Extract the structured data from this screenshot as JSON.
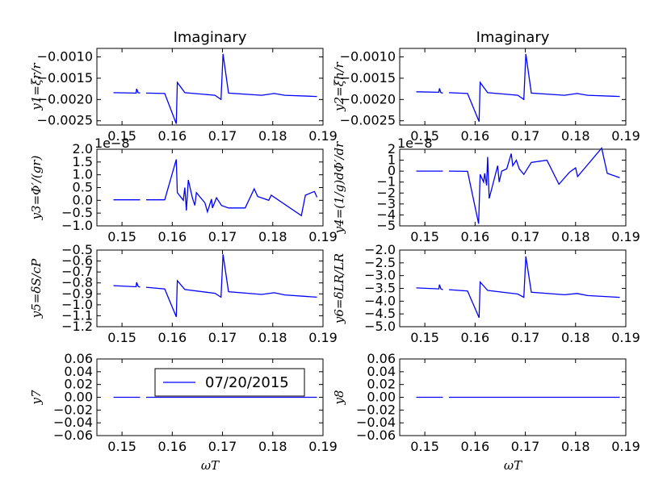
{
  "chart_data": [
    {
      "type": "line",
      "title": "Imaginary",
      "ylabel": "y1=ξr/r",
      "xlabel": "",
      "xlim": [
        0.145,
        0.19
      ],
      "ylim": [
        -0.0026,
        -0.0008
      ],
      "xticks": [
        0.15,
        0.16,
        0.17,
        0.18,
        0.19
      ],
      "yticks": [
        -0.0025,
        -0.002,
        -0.0015,
        -0.001
      ],
      "ytick_labels": [
        "−0.0025",
        "−0.0020",
        "−0.0015",
        "−0.0010"
      ],
      "series": [
        {
          "color": "#0000ff",
          "segments": [
            [
              [
                0.1483,
                -0.00184
              ],
              [
                0.1528,
                -0.00185
              ],
              [
                0.1529,
                -0.00175
              ],
              [
                0.1532,
                -0.00184
              ],
              [
                0.1536,
                -0.00185
              ]
            ],
            [
              [
                0.1548,
                -0.00185
              ],
              [
                0.1585,
                -0.00186
              ],
              [
                0.1608,
                -0.00257
              ],
              [
                0.161,
                -0.0016
              ],
              [
                0.1625,
                -0.00184
              ],
              [
                0.1685,
                -0.0019
              ],
              [
                0.1697,
                -0.002
              ],
              [
                0.1701,
                -0.00093
              ],
              [
                0.1712,
                -0.00185
              ],
              [
                0.1778,
                -0.0019
              ],
              [
                0.1803,
                -0.00186
              ],
              [
                0.1824,
                -0.0019
              ],
              [
                0.1888,
                -0.00193
              ]
            ]
          ]
        }
      ]
    },
    {
      "type": "line",
      "title": "Imaginary",
      "ylabel": "y2=ξh/r",
      "xlabel": "",
      "xlim": [
        0.145,
        0.19
      ],
      "ylim": [
        -0.0026,
        -0.0008
      ],
      "xticks": [
        0.15,
        0.16,
        0.17,
        0.18,
        0.19
      ],
      "yticks": [
        -0.0025,
        -0.002,
        -0.0015,
        -0.001
      ],
      "ytick_labels": [
        "−0.0025",
        "−0.0020",
        "−0.0015",
        "−0.0010"
      ],
      "series": [
        {
          "color": "#0000ff",
          "segments": [
            [
              [
                0.1483,
                -0.00182
              ],
              [
                0.1528,
                -0.00183
              ],
              [
                0.1529,
                -0.00174
              ],
              [
                0.1532,
                -0.00184
              ],
              [
                0.1536,
                -0.00185
              ]
            ],
            [
              [
                0.1548,
                -0.00184
              ],
              [
                0.1585,
                -0.00186
              ],
              [
                0.1608,
                -0.00252
              ],
              [
                0.161,
                -0.0016
              ],
              [
                0.1625,
                -0.00184
              ],
              [
                0.1685,
                -0.0019
              ],
              [
                0.1697,
                -0.002
              ],
              [
                0.1701,
                -0.00093
              ],
              [
                0.1712,
                -0.00185
              ],
              [
                0.1778,
                -0.0019
              ],
              [
                0.1803,
                -0.00186
              ],
              [
                0.1824,
                -0.0019
              ],
              [
                0.1888,
                -0.00193
              ]
            ]
          ]
        }
      ]
    },
    {
      "type": "line",
      "title": "",
      "ylabel": "y3=Φ′/(gr)",
      "offset": "1e−8",
      "xlabel": "",
      "xlim": [
        0.145,
        0.19
      ],
      "ylim": [
        -1.0,
        2.0
      ],
      "xticks": [
        0.15,
        0.16,
        0.17,
        0.18,
        0.19
      ],
      "yticks": [
        -1.0,
        -0.5,
        0.0,
        0.5,
        1.0,
        1.5,
        2.0
      ],
      "ytick_labels": [
        "−1.0",
        "−0.5",
        "0.0",
        "0.5",
        "1.0",
        "1.5",
        "2.0"
      ],
      "series": [
        {
          "color": "#0000ff",
          "segments": [
            [
              [
                0.1483,
                0.02
              ],
              [
                0.1536,
                0.02
              ]
            ],
            [
              [
                0.1548,
                0.02
              ],
              [
                0.1585,
                0.02
              ],
              [
                0.1608,
                1.6
              ],
              [
                0.161,
                0.3
              ],
              [
                0.1622,
                0.0
              ],
              [
                0.1625,
                0.5
              ],
              [
                0.1628,
                -0.4
              ],
              [
                0.1632,
                0.8
              ],
              [
                0.164,
                0.1
              ],
              [
                0.1645,
                -0.2
              ],
              [
                0.1648,
                0.3
              ],
              [
                0.1665,
                -0.1
              ],
              [
                0.167,
                -0.45
              ],
              [
                0.1678,
                0.05
              ],
              [
                0.168,
                -0.3
              ],
              [
                0.1688,
                0.1
              ],
              [
                0.1698,
                -0.2
              ],
              [
                0.1712,
                -0.3
              ],
              [
                0.1745,
                -0.3
              ],
              [
                0.1763,
                0.45
              ],
              [
                0.177,
                0.15
              ],
              [
                0.1792,
                0.0
              ],
              [
                0.1797,
                0.2
              ],
              [
                0.1857,
                -0.6
              ],
              [
                0.1865,
                0.2
              ],
              [
                0.1883,
                0.35
              ],
              [
                0.1888,
                0.12
              ]
            ]
          ]
        }
      ]
    },
    {
      "type": "line",
      "title": "",
      "ylabel": "y4=(1/g)dΦ′/dr",
      "offset": "1e−8",
      "xlabel": "",
      "xlim": [
        0.145,
        0.19
      ],
      "ylim": [
        -5,
        2
      ],
      "xticks": [
        0.15,
        0.16,
        0.17,
        0.18,
        0.19
      ],
      "yticks": [
        -5,
        -4,
        -3,
        -2,
        -1,
        0,
        1,
        2
      ],
      "ytick_labels": [
        "−5",
        "−4",
        "−3",
        "−2",
        "−1",
        "0",
        "1",
        "2"
      ],
      "series": [
        {
          "color": "#0000ff",
          "segments": [
            [
              [
                0.1483,
                0.0
              ],
              [
                0.1536,
                0.0
              ]
            ],
            [
              [
                0.1548,
                0.0
              ],
              [
                0.1585,
                -0.02
              ],
              [
                0.1607,
                -4.8
              ],
              [
                0.161,
                -0.3
              ],
              [
                0.1617,
                -1.0
              ],
              [
                0.1619,
                -0.2
              ],
              [
                0.1623,
                -1.3
              ],
              [
                0.1625,
                1.3
              ],
              [
                0.1628,
                -2.5
              ],
              [
                0.1645,
                0.5
              ],
              [
                0.1648,
                -1.0
              ],
              [
                0.1653,
                0.0
              ],
              [
                0.1663,
                0.2
              ],
              [
                0.1672,
                1.6
              ],
              [
                0.1675,
                0.5
              ],
              [
                0.1682,
                1.0
              ],
              [
                0.1688,
                0.2
              ],
              [
                0.1697,
                -0.3
              ],
              [
                0.1712,
                0.8
              ],
              [
                0.1743,
                1.0
              ],
              [
                0.1767,
                -1.2
              ],
              [
                0.1788,
                -0.1
              ],
              [
                0.18,
                0.3
              ],
              [
                0.1804,
                -0.5
              ],
              [
                0.1852,
                2.1
              ],
              [
                0.1863,
                -0.2
              ],
              [
                0.1888,
                -0.6
              ]
            ]
          ]
        }
      ]
    },
    {
      "type": "line",
      "title": "",
      "ylabel": "y5=δS/cP",
      "xlabel": "",
      "xlim": [
        0.145,
        0.19
      ],
      "ylim": [
        -1.2,
        -0.5
      ],
      "xticks": [
        0.15,
        0.16,
        0.17,
        0.18,
        0.19
      ],
      "yticks": [
        -1.2,
        -1.1,
        -1.0,
        -0.9,
        -0.8,
        -0.7,
        -0.6,
        -0.5
      ],
      "ytick_labels": [
        "−1.2",
        "−1.1",
        "−1.0",
        "−0.9",
        "−0.8",
        "−0.7",
        "−0.6",
        "−0.5"
      ],
      "series": [
        {
          "color": "#0000ff",
          "segments": [
            [
              [
                0.1483,
                -0.825
              ],
              [
                0.1528,
                -0.835
              ],
              [
                0.1529,
                -0.795
              ],
              [
                0.1532,
                -0.83
              ],
              [
                0.1536,
                -0.84
              ]
            ],
            [
              [
                0.1548,
                -0.84
              ],
              [
                0.1585,
                -0.855
              ],
              [
                0.1608,
                -1.11
              ],
              [
                0.161,
                -0.78
              ],
              [
                0.1625,
                -0.86
              ],
              [
                0.1685,
                -0.895
              ],
              [
                0.1697,
                -0.93
              ],
              [
                0.1701,
                -0.54
              ],
              [
                0.1712,
                -0.88
              ],
              [
                0.1778,
                -0.905
              ],
              [
                0.1803,
                -0.89
              ],
              [
                0.1824,
                -0.91
              ],
              [
                0.1888,
                -0.93
              ]
            ]
          ]
        }
      ]
    },
    {
      "type": "line",
      "title": "",
      "ylabel": "y6=δLR/LR",
      "xlabel": "",
      "xlim": [
        0.145,
        0.19
      ],
      "ylim": [
        -5.0,
        -2.0
      ],
      "xticks": [
        0.15,
        0.16,
        0.17,
        0.18,
        0.19
      ],
      "yticks": [
        -5.0,
        -4.5,
        -4.0,
        -3.5,
        -3.0,
        -2.5,
        -2.0
      ],
      "ytick_labels": [
        "−5.0",
        "−4.5",
        "−4.0",
        "−3.5",
        "−3.0",
        "−2.5",
        "−2.0"
      ],
      "series": [
        {
          "color": "#0000ff",
          "segments": [
            [
              [
                0.1483,
                -3.48
              ],
              [
                0.1528,
                -3.52
              ],
              [
                0.1529,
                -3.35
              ],
              [
                0.1532,
                -3.52
              ],
              [
                0.1536,
                -3.55
              ]
            ],
            [
              [
                0.1548,
                -3.55
              ],
              [
                0.1585,
                -3.6
              ],
              [
                0.1608,
                -4.65
              ],
              [
                0.161,
                -3.25
              ],
              [
                0.1625,
                -3.58
              ],
              [
                0.1685,
                -3.72
              ],
              [
                0.1697,
                -3.85
              ],
              [
                0.1701,
                -2.25
              ],
              [
                0.1712,
                -3.65
              ],
              [
                0.1778,
                -3.75
              ],
              [
                0.1803,
                -3.7
              ],
              [
                0.1824,
                -3.78
              ],
              [
                0.1888,
                -3.85
              ]
            ]
          ]
        }
      ]
    },
    {
      "type": "line",
      "title": "",
      "ylabel": "y7",
      "xlabel": "ωT",
      "xlim": [
        0.145,
        0.19
      ],
      "ylim": [
        -0.06,
        0.06
      ],
      "xticks": [
        0.15,
        0.16,
        0.17,
        0.18,
        0.19
      ],
      "yticks": [
        -0.06,
        -0.04,
        -0.02,
        0.0,
        0.02,
        0.04,
        0.06
      ],
      "ytick_labels": [
        "−0.06",
        "−0.04",
        "−0.02",
        "0.00",
        "0.02",
        "0.04",
        "0.06"
      ],
      "legend": {
        "label": "07/20/2015",
        "position": "upper-right"
      },
      "series": [
        {
          "name": "07/20/2015",
          "color": "#0000ff",
          "segments": [
            [
              [
                0.1483,
                0.0
              ],
              [
                0.1536,
                0.0
              ]
            ],
            [
              [
                0.1548,
                0.0
              ],
              [
                0.1888,
                0.0
              ]
            ]
          ]
        }
      ]
    },
    {
      "type": "line",
      "title": "",
      "ylabel": "y8",
      "xlabel": "ωT",
      "xlim": [
        0.145,
        0.19
      ],
      "ylim": [
        -0.06,
        0.06
      ],
      "xticks": [
        0.15,
        0.16,
        0.17,
        0.18,
        0.19
      ],
      "yticks": [
        -0.06,
        -0.04,
        -0.02,
        0.0,
        0.02,
        0.04,
        0.06
      ],
      "ytick_labels": [
        "−0.06",
        "−0.04",
        "−0.02",
        "0.00",
        "0.02",
        "0.04",
        "0.06"
      ],
      "series": [
        {
          "color": "#0000ff",
          "segments": [
            [
              [
                0.1483,
                0.0
              ],
              [
                0.1536,
                0.0
              ]
            ],
            [
              [
                0.1548,
                0.0
              ],
              [
                0.1888,
                0.0
              ]
            ]
          ]
        }
      ]
    }
  ]
}
